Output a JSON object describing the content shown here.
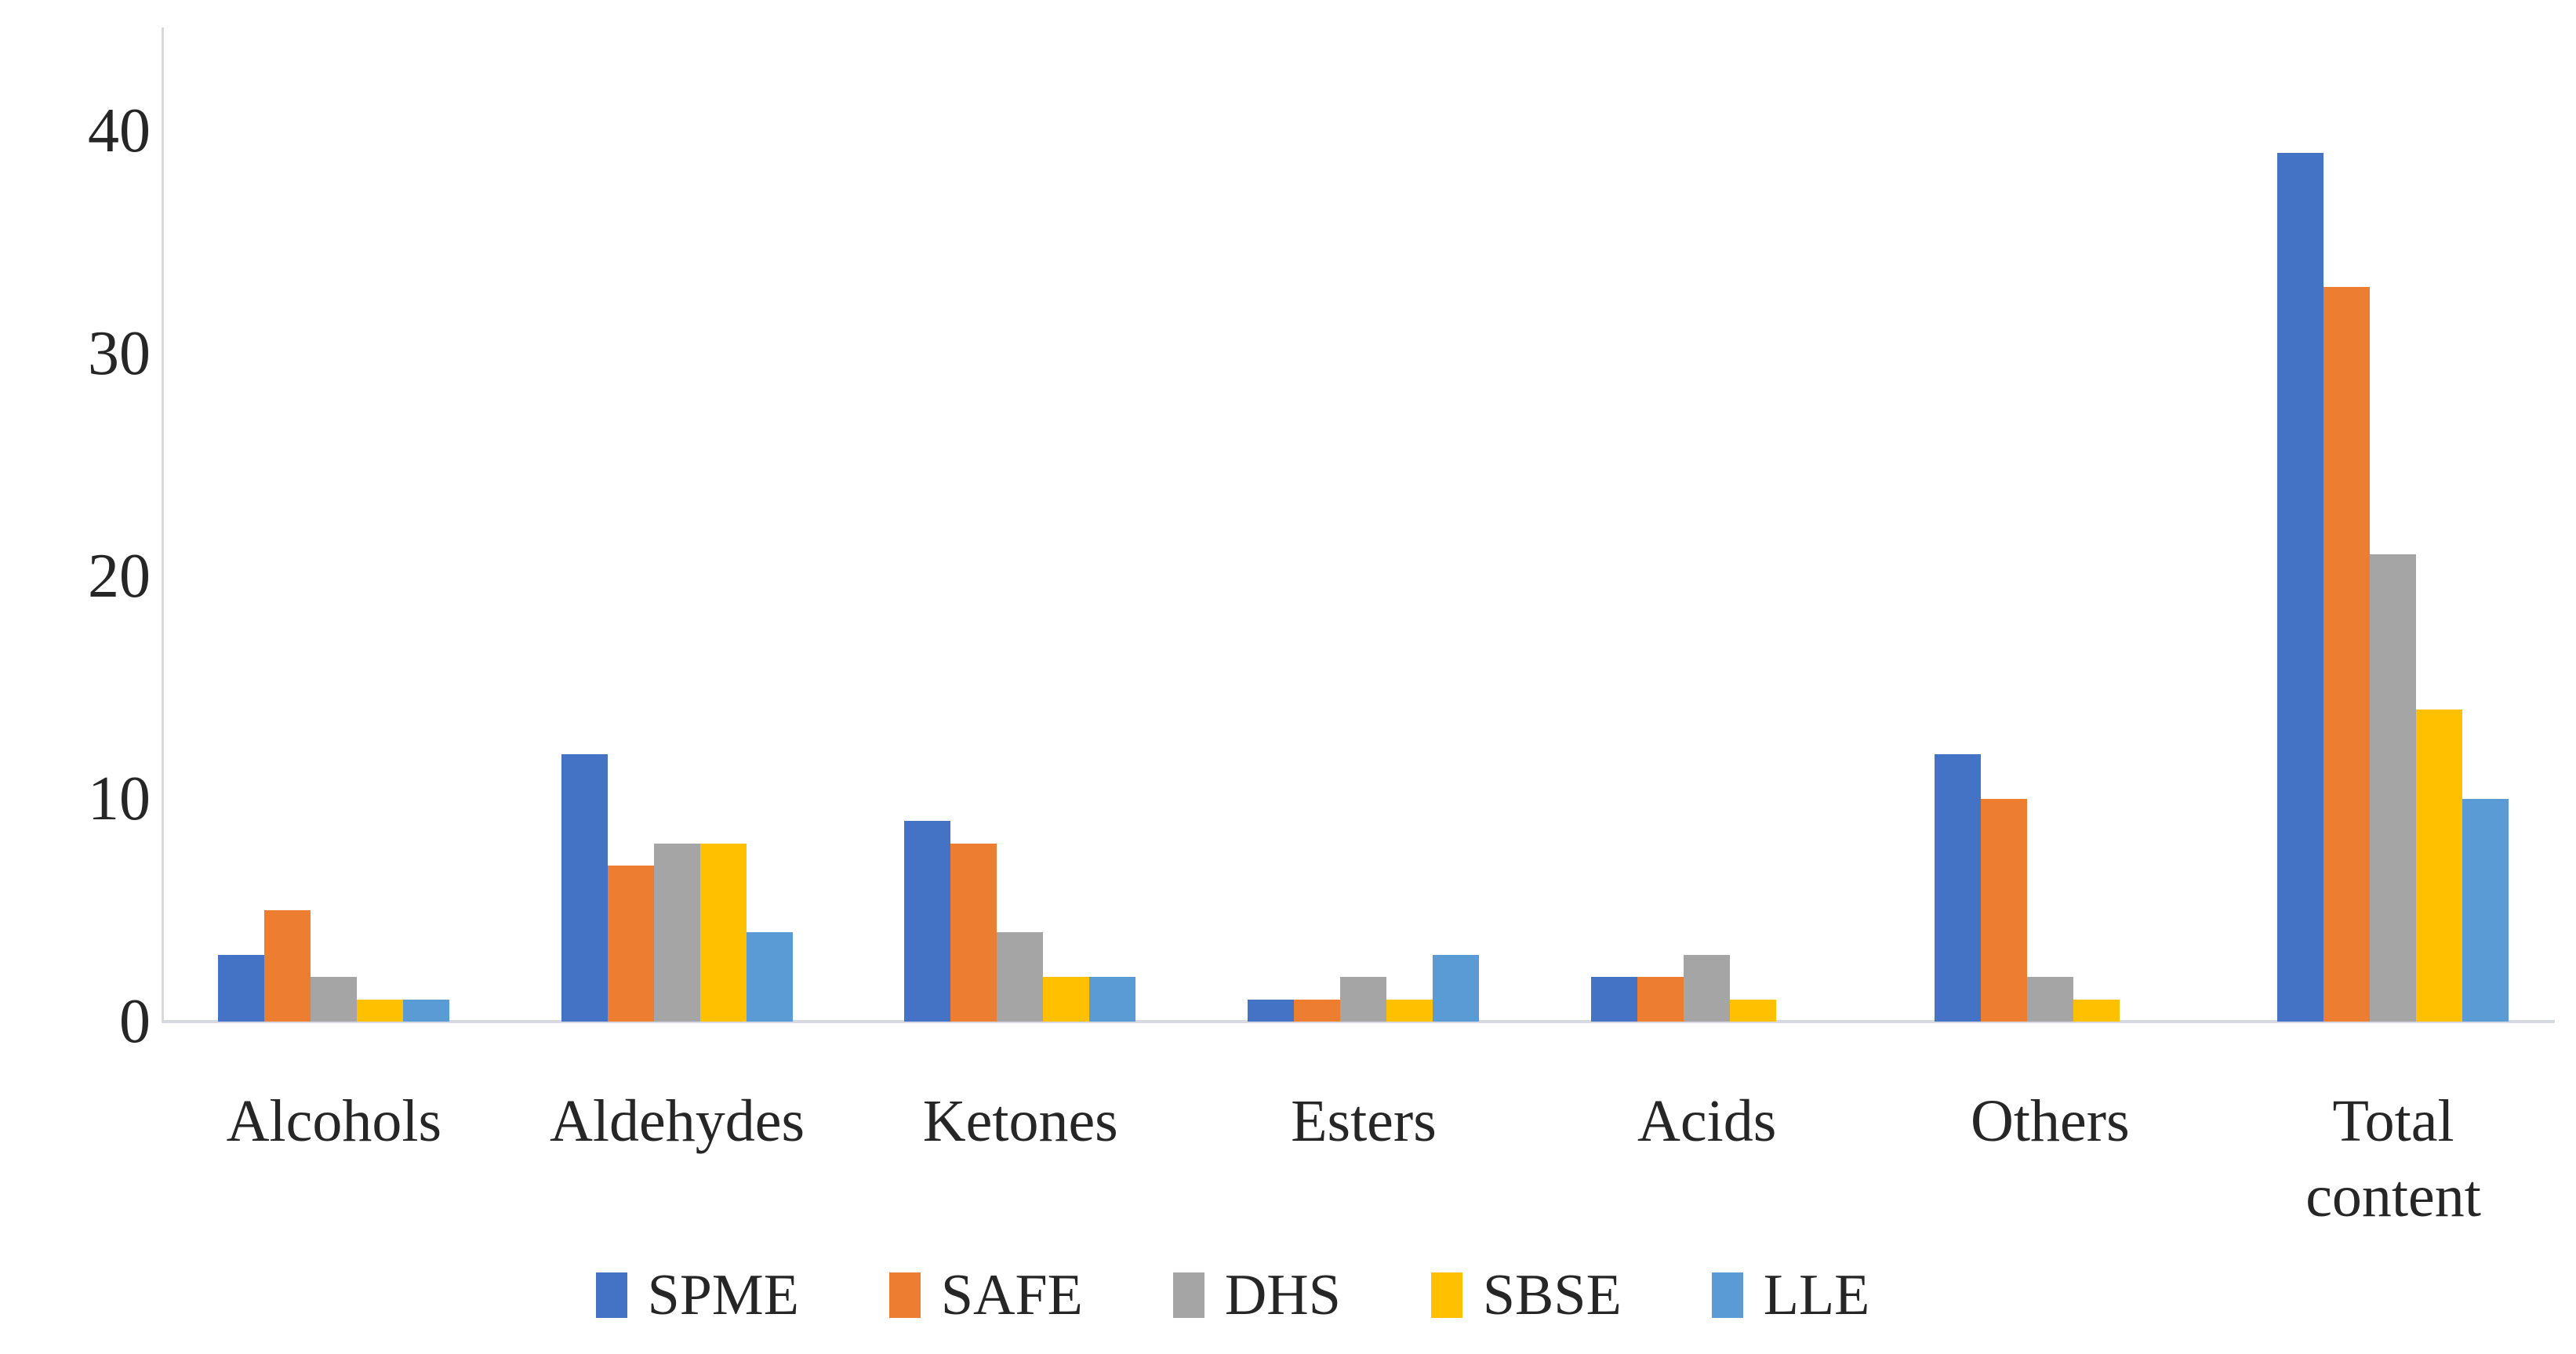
{
  "chart_data": {
    "type": "bar",
    "title": "",
    "categories": [
      "Alcohols",
      "Aldehydes",
      "Ketones",
      "Esters",
      "Acids",
      "Others",
      "Total content"
    ],
    "series": [
      {
        "name": "SPME",
        "color": "#4472C4",
        "values": [
          3,
          12,
          9,
          1,
          2,
          12,
          39
        ]
      },
      {
        "name": "SAFE",
        "color": "#ED7D31",
        "values": [
          5,
          7,
          8,
          1,
          2,
          10,
          33
        ]
      },
      {
        "name": "DHS",
        "color": "#A5A5A5",
        "values": [
          2,
          8,
          4,
          2,
          3,
          2,
          21
        ]
      },
      {
        "name": "SBSE",
        "color": "#FFC000",
        "values": [
          1,
          8,
          2,
          1,
          1,
          1,
          14
        ]
      },
      {
        "name": "LLE",
        "color": "#5B9BD5",
        "values": [
          1,
          4,
          2,
          3,
          0,
          0,
          10
        ]
      }
    ],
    "y_axis": {
      "min": 0,
      "max": 44,
      "ticks": [
        0,
        10,
        20,
        30,
        40
      ]
    },
    "x_label": "",
    "y_label": "",
    "grid": false,
    "legend_position": "bottom",
    "axis_line_color": "#D9D9D9",
    "baseline_color": "#D6D9E0",
    "text_color": "#262626",
    "background_color": "#FFFFFF"
  }
}
